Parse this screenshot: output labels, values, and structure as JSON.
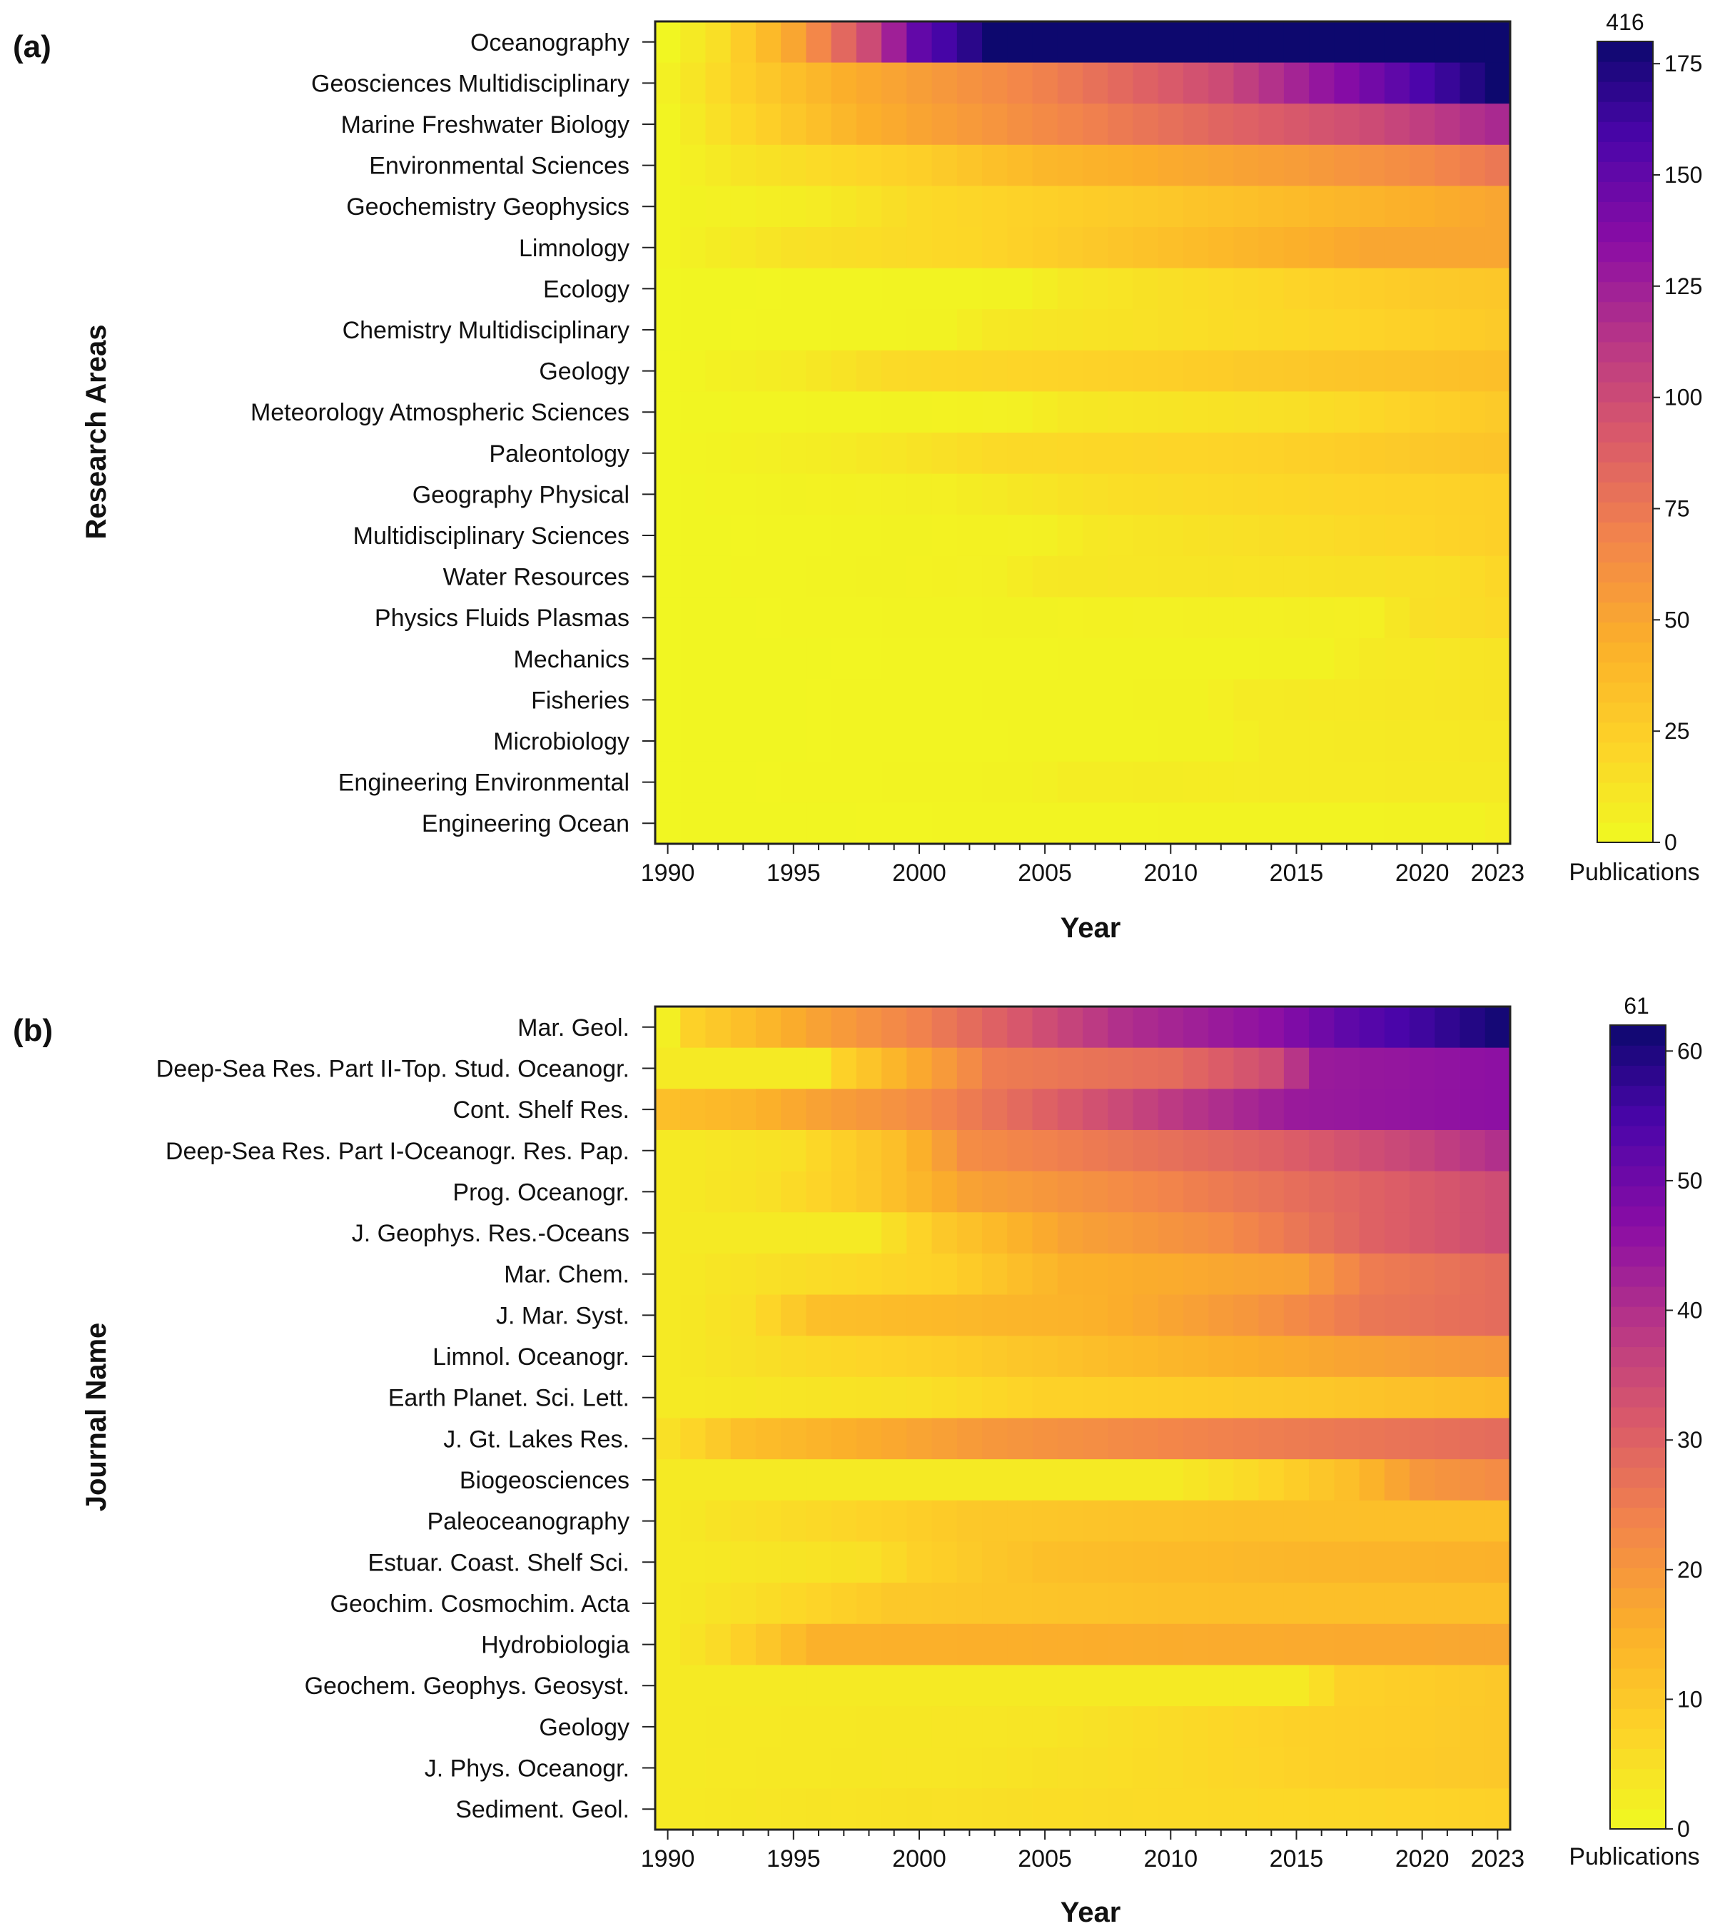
{
  "chart_data": [
    {
      "type": "heatmap",
      "panel_label": "(a)",
      "xlabel": "Year",
      "ylabel": "Research Areas",
      "x_ticks": [
        "1990",
        "1995",
        "2000",
        "2005",
        "2010",
        "2015",
        "2020",
        "2023"
      ],
      "year_range": [
        1990,
        2023
      ],
      "rows": [
        "Oceanography",
        "Geosciences Multidisciplinary",
        "Marine Freshwater Biology",
        "Environmental Sciences",
        "Geochemistry Geophysics",
        "Limnology",
        "Ecology",
        "Chemistry Multidisciplinary",
        "Geology",
        "Meteorology Atmospheric Sciences",
        "Paleontology",
        "Geography Physical",
        "Multidisciplinary Sciences",
        "Water Resources",
        "Physics Fluids Plasmas",
        "Mechanics",
        "Fisheries",
        "Microbiology",
        "Engineering Environmental",
        "Engineering Ocean"
      ],
      "row_profiles": [
        [
          [
            1990,
            2
          ],
          [
            1992,
            15
          ],
          [
            1995,
            50
          ],
          [
            1998,
            100
          ],
          [
            2000,
            150
          ],
          [
            2003,
            180
          ],
          [
            2023,
            416
          ]
        ],
        [
          [
            1990,
            5
          ],
          [
            1993,
            25
          ],
          [
            1997,
            45
          ],
          [
            2005,
            70
          ],
          [
            2012,
            100
          ],
          [
            2016,
            130
          ],
          [
            2021,
            165
          ],
          [
            2023,
            180
          ]
        ],
        [
          [
            1990,
            3
          ],
          [
            1993,
            20
          ],
          [
            1998,
            45
          ],
          [
            2005,
            65
          ],
          [
            2012,
            85
          ],
          [
            2018,
            100
          ],
          [
            2023,
            120
          ]
        ],
        [
          [
            1990,
            3
          ],
          [
            1993,
            12
          ],
          [
            2000,
            25
          ],
          [
            2005,
            40
          ],
          [
            2015,
            55
          ],
          [
            2020,
            65
          ],
          [
            2023,
            75
          ]
        ],
        [
          [
            1990,
            3
          ],
          [
            1996,
            8
          ],
          [
            2000,
            18
          ],
          [
            2010,
            30
          ],
          [
            2020,
            45
          ],
          [
            2023,
            50
          ]
        ],
        [
          [
            1990,
            3
          ],
          [
            1995,
            14
          ],
          [
            2002,
            20
          ],
          [
            2010,
            35
          ],
          [
            2018,
            50
          ],
          [
            2023,
            50
          ]
        ],
        [
          [
            1990,
            2
          ],
          [
            2004,
            4
          ],
          [
            2006,
            10
          ],
          [
            2014,
            20
          ],
          [
            2020,
            28
          ],
          [
            2023,
            30
          ]
        ],
        [
          [
            1990,
            2
          ],
          [
            2001,
            4
          ],
          [
            2003,
            10
          ],
          [
            2010,
            15
          ],
          [
            2018,
            22
          ],
          [
            2023,
            28
          ]
        ],
        [
          [
            1990,
            2
          ],
          [
            1995,
            8
          ],
          [
            1999,
            18
          ],
          [
            2010,
            25
          ],
          [
            2018,
            32
          ],
          [
            2023,
            35
          ]
        ],
        [
          [
            1990,
            2
          ],
          [
            2004,
            5
          ],
          [
            2006,
            10
          ],
          [
            2015,
            15
          ],
          [
            2021,
            25
          ],
          [
            2023,
            28
          ]
        ],
        [
          [
            1990,
            2
          ],
          [
            1997,
            8
          ],
          [
            2003,
            18
          ],
          [
            2013,
            22
          ],
          [
            2021,
            30
          ],
          [
            2023,
            32
          ]
        ],
        [
          [
            1990,
            2
          ],
          [
            2001,
            6
          ],
          [
            2008,
            16
          ],
          [
            2019,
            22
          ],
          [
            2023,
            24
          ]
        ],
        [
          [
            1990,
            2
          ],
          [
            2005,
            5
          ],
          [
            2007,
            10
          ],
          [
            2017,
            18
          ],
          [
            2023,
            24
          ]
        ],
        [
          [
            1990,
            2
          ],
          [
            2003,
            5
          ],
          [
            2005,
            10
          ],
          [
            2021,
            15
          ],
          [
            2023,
            20
          ]
        ],
        [
          [
            1990,
            2
          ],
          [
            2018,
            6
          ],
          [
            2020,
            15
          ],
          [
            2023,
            18
          ]
        ],
        [
          [
            1990,
            2
          ],
          [
            2016,
            4
          ],
          [
            2018,
            9
          ],
          [
            2023,
            12
          ]
        ],
        [
          [
            1990,
            2
          ],
          [
            2011,
            4
          ],
          [
            2013,
            8
          ],
          [
            2023,
            12
          ]
        ],
        [
          [
            1990,
            2
          ],
          [
            2012,
            4
          ],
          [
            2014,
            8
          ],
          [
            2023,
            10
          ]
        ],
        [
          [
            1990,
            2
          ],
          [
            2004,
            4
          ],
          [
            2006,
            7
          ],
          [
            2023,
            9
          ]
        ],
        [
          [
            1990,
            2
          ],
          [
            2022,
            4
          ],
          [
            2023,
            6
          ]
        ]
      ],
      "colorbar": {
        "title": "Publications",
        "ticks": [
          "0",
          "25",
          "50",
          "75",
          "100",
          "125",
          "150",
          "175"
        ],
        "tick_values": [
          0,
          25,
          50,
          75,
          100,
          125,
          150,
          175
        ],
        "range": [
          0,
          180
        ],
        "max_label": "416"
      }
    },
    {
      "type": "heatmap",
      "panel_label": "(b)",
      "xlabel": "Year",
      "ylabel": "Journal Name",
      "x_ticks": [
        "1990",
        "1995",
        "2000",
        "2005",
        "2010",
        "2015",
        "2020",
        "2023"
      ],
      "year_range": [
        1990,
        2023
      ],
      "rows": [
        "Mar. Geol.",
        "Deep-Sea Res. Part II-Top. Stud. Oceanogr.",
        "Cont. Shelf Res.",
        "Deep-Sea Res. Part I-Oceanogr. Res. Pap.",
        "Prog. Oceanogr.",
        "J. Geophys. Res.-Oceans",
        "Mar. Chem.",
        "J. Mar. Syst.",
        "Limnol. Oceanogr.",
        "Earth Planet. Sci. Lett.",
        "J. Gt. Lakes Res.",
        "Biogeosciences",
        "Paleoceanography",
        "Estuar. Coast. Shelf Sci.",
        "Geochim. Cosmochim. Acta",
        "Hydrobiologia",
        "Geochem. Geophys. Geosyst.",
        "Geology",
        "J. Phys. Oceanogr.",
        "Sediment. Geol."
      ],
      "row_profiles": [
        [
          [
            1990,
            2
          ],
          [
            1991,
            8
          ],
          [
            1993,
            12
          ],
          [
            1996,
            18
          ],
          [
            2000,
            24
          ],
          [
            2004,
            32
          ],
          [
            2008,
            40
          ],
          [
            2014,
            46
          ],
          [
            2017,
            52
          ],
          [
            2020,
            56
          ],
          [
            2023,
            61
          ]
        ],
        [
          [
            1990,
            3
          ],
          [
            1996,
            3
          ],
          [
            1997,
            8
          ],
          [
            1999,
            14
          ],
          [
            2003,
            25
          ],
          [
            2010,
            28
          ],
          [
            2014,
            34
          ],
          [
            2016,
            44
          ],
          [
            2023,
            46
          ]
        ],
        [
          [
            1990,
            12
          ],
          [
            1993,
            14
          ],
          [
            1996,
            18
          ],
          [
            2000,
            22
          ],
          [
            2005,
            30
          ],
          [
            2010,
            38
          ],
          [
            2015,
            44
          ],
          [
            2023,
            46
          ]
        ],
        [
          [
            1990,
            3
          ],
          [
            1995,
            5
          ],
          [
            1999,
            12
          ],
          [
            2002,
            22
          ],
          [
            2008,
            26
          ],
          [
            2014,
            30
          ],
          [
            2020,
            36
          ],
          [
            2023,
            40
          ]
        ],
        [
          [
            1990,
            3
          ],
          [
            1994,
            5
          ],
          [
            1998,
            10
          ],
          [
            2002,
            18
          ],
          [
            2008,
            22
          ],
          [
            2018,
            30
          ],
          [
            2023,
            34
          ]
        ],
        [
          [
            1990,
            3
          ],
          [
            1998,
            3
          ],
          [
            2001,
            10
          ],
          [
            2006,
            18
          ],
          [
            2012,
            22
          ],
          [
            2018,
            30
          ],
          [
            2023,
            34
          ]
        ],
        [
          [
            1990,
            3
          ],
          [
            1994,
            5
          ],
          [
            2001,
            8
          ],
          [
            2006,
            15
          ],
          [
            2015,
            18
          ],
          [
            2018,
            25
          ],
          [
            2023,
            28
          ]
        ],
        [
          [
            1990,
            3
          ],
          [
            1993,
            5
          ],
          [
            1996,
            12
          ],
          [
            2007,
            15
          ],
          [
            2013,
            20
          ],
          [
            2018,
            26
          ],
          [
            2023,
            28
          ]
        ],
        [
          [
            1990,
            3
          ],
          [
            1995,
            6
          ],
          [
            2000,
            8
          ],
          [
            2005,
            11
          ],
          [
            2010,
            14
          ],
          [
            2018,
            18
          ],
          [
            2023,
            20
          ]
        ],
        [
          [
            1990,
            3
          ],
          [
            2000,
            5
          ],
          [
            2005,
            8
          ],
          [
            2015,
            10
          ],
          [
            2023,
            13
          ]
        ],
        [
          [
            1990,
            5
          ],
          [
            1993,
            12
          ],
          [
            2003,
            20
          ],
          [
            2012,
            24
          ],
          [
            2023,
            28
          ]
        ],
        [
          [
            1990,
            3
          ],
          [
            2010,
            3
          ],
          [
            2013,
            6
          ],
          [
            2017,
            12
          ],
          [
            2020,
            20
          ],
          [
            2023,
            22
          ]
        ],
        [
          [
            1990,
            3
          ],
          [
            1993,
            5
          ],
          [
            1997,
            7
          ],
          [
            2002,
            10
          ],
          [
            2013,
            12
          ],
          [
            2023,
            12
          ]
        ],
        [
          [
            1990,
            3
          ],
          [
            1998,
            5
          ],
          [
            2000,
            8
          ],
          [
            2005,
            12
          ],
          [
            2015,
            14
          ],
          [
            2023,
            15
          ]
        ],
        [
          [
            1990,
            3
          ],
          [
            1993,
            5
          ],
          [
            1999,
            10
          ],
          [
            2012,
            12
          ],
          [
            2023,
            12
          ]
        ],
        [
          [
            1990,
            3
          ],
          [
            1992,
            6
          ],
          [
            1996,
            15
          ],
          [
            2023,
            17
          ]
        ],
        [
          [
            1990,
            3
          ],
          [
            2015,
            3
          ],
          [
            2017,
            8
          ],
          [
            2023,
            10
          ]
        ],
        [
          [
            1990,
            3
          ],
          [
            2005,
            4
          ],
          [
            2015,
            8
          ],
          [
            2023,
            10
          ]
        ],
        [
          [
            1990,
            3
          ],
          [
            2002,
            4
          ],
          [
            2010,
            6
          ],
          [
            2018,
            9
          ],
          [
            2023,
            10
          ]
        ],
        [
          [
            1990,
            3
          ],
          [
            1995,
            4
          ],
          [
            2008,
            6
          ],
          [
            2018,
            7
          ],
          [
            2023,
            8
          ]
        ]
      ],
      "colorbar": {
        "title": "Publications",
        "ticks": [
          "0",
          "10",
          "20",
          "30",
          "40",
          "50",
          "60"
        ],
        "tick_values": [
          0,
          10,
          20,
          30,
          40,
          50,
          60
        ],
        "range": [
          0,
          62
        ],
        "max_label": "61"
      }
    }
  ]
}
